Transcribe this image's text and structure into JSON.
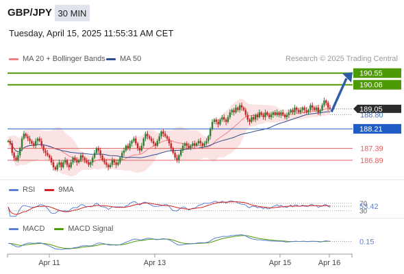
{
  "header": {
    "pair": "GBP/JPY",
    "timeframe": "30 MIN",
    "timestamp": "Tuesday, April 15, 2025 11:55:31 AM CET",
    "credit": "Research © 2025 Trading Central"
  },
  "legend": {
    "ma20_bb": "MA 20 + Bollinger Bands",
    "ma50": "MA 50",
    "rsi": "RSI",
    "rsi_ma": "9MA",
    "macd": "MACD",
    "macd_signal": "MACD Signal"
  },
  "colors": {
    "ma20": "#f08080",
    "ma50": "#2a4d8f",
    "bb_fill": "#fbdada",
    "resistance": "#4e9a06",
    "pivot": "#1f5cc4",
    "support": "#e06060",
    "candle_up": "#2e7d32",
    "candle_down": "#c62828",
    "arrow": "#2e5ea8",
    "rsi": "#5b7fd0",
    "rsi_ma": "#d42020",
    "macd": "#5b7fd0",
    "macd_signal": "#4e9a06"
  },
  "chart_data": {
    "type": "candlestick",
    "ylim": [
      186.2,
      190.8
    ],
    "x_ticks": [
      "Apr 11",
      "Apr 13",
      "Apr 15",
      "Apr 16"
    ],
    "levels": [
      {
        "value": 190.55,
        "label": "190.55",
        "kind": "resistance"
      },
      {
        "value": 190.06,
        "label": "190.06",
        "kind": "resistance"
      },
      {
        "value": 188.21,
        "label": "188.21",
        "kind": "pivot"
      },
      {
        "value": 187.39,
        "label": "187.39",
        "kind": "support"
      },
      {
        "value": 186.89,
        "label": "186.89",
        "kind": "support"
      }
    ],
    "last_price": {
      "value": 189.05,
      "label": "189.05"
    },
    "last_close": {
      "value": 188.8,
      "label": "188.80"
    },
    "close": [
      187.7,
      187.6,
      187.2,
      187.0,
      186.9,
      187.1,
      187.4,
      187.8,
      188.0,
      187.9,
      187.8,
      187.7,
      187.6,
      187.5,
      187.7,
      187.8,
      187.7,
      187.5,
      187.3,
      187.2,
      187.1,
      187.0,
      186.8,
      186.6,
      186.5,
      186.7,
      186.8,
      186.6,
      186.8,
      186.9,
      186.7,
      186.6,
      186.8,
      187.0,
      186.9,
      186.8,
      186.9,
      187.1,
      187.0,
      186.9,
      186.8,
      186.7,
      186.8,
      187.0,
      187.2,
      187.4,
      187.3,
      187.1,
      186.9,
      186.8,
      186.7,
      186.6,
      186.7,
      186.9,
      186.8,
      186.7,
      186.8,
      187.0,
      187.2,
      187.3,
      187.5,
      187.4,
      187.6,
      187.7,
      187.8,
      187.6,
      187.4,
      187.3,
      187.5,
      187.8,
      188.0,
      187.9,
      187.8,
      187.7,
      187.6,
      187.5,
      187.7,
      187.9,
      188.1,
      188.0,
      187.9,
      187.8,
      187.6,
      187.4,
      187.2,
      187.0,
      186.9,
      187.1,
      187.3,
      187.5,
      187.6,
      187.5,
      187.4,
      187.5,
      187.6,
      187.5,
      187.6,
      187.7,
      187.6,
      187.5,
      187.6,
      187.7,
      187.9,
      188.2,
      188.5,
      188.6,
      188.5,
      188.4,
      188.6,
      188.7,
      188.6,
      188.5,
      188.7,
      188.9,
      189.0,
      188.9,
      189.1,
      189.0,
      189.2,
      189.1,
      189.0,
      188.8,
      188.6,
      188.5,
      188.7,
      188.6,
      188.8,
      188.7,
      188.9,
      188.8,
      188.7,
      188.9,
      188.8,
      188.7,
      188.8,
      188.9,
      188.8,
      188.9,
      188.8,
      188.9,
      188.8,
      188.7,
      188.8,
      188.9,
      189.0,
      188.9,
      189.1,
      189.0,
      188.9,
      189.0,
      189.1,
      189.0,
      188.9,
      189.0,
      189.2,
      189.1,
      189.0,
      189.1,
      188.9,
      189.0,
      189.2,
      189.4,
      189.3,
      189.1,
      189.05
    ],
    "rsi_value": "53.42",
    "rsi_ticks": [
      "70",
      "30"
    ],
    "macd_value": "0.15"
  }
}
